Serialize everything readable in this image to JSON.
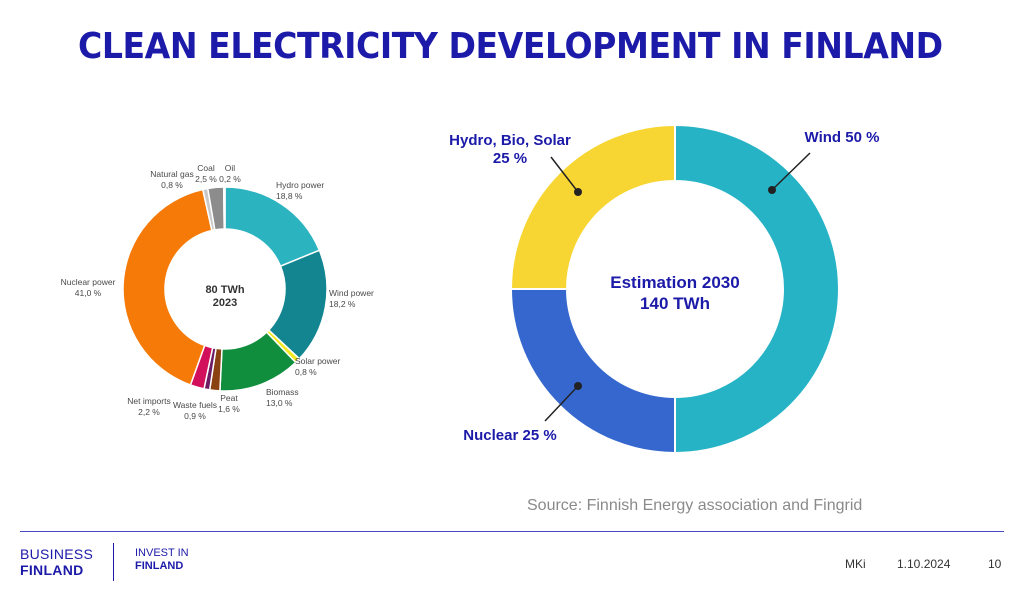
{
  "title": "CLEAN ELECTRICITY DEVELOPMENT IN FINLAND",
  "chart_data": [
    {
      "type": "pie",
      "variant": "donut",
      "center_label": [
        "80 TWh",
        "2023"
      ],
      "slices": [
        {
          "label": "Hydro power",
          "value_text": "18,8 %",
          "value": 18.8,
          "color": "#2bb3c0"
        },
        {
          "label": "Wind power",
          "value_text": "18,2 %",
          "value": 18.2,
          "color": "#138591"
        },
        {
          "label": "Solar power",
          "value_text": "0,8 %",
          "value": 0.8,
          "color": "#f2ea1e"
        },
        {
          "label": "Biomass",
          "value_text": "13,0 %",
          "value": 13.0,
          "color": "#108e3e"
        },
        {
          "label": "Peat",
          "value_text": "1,6 %",
          "value": 1.6,
          "color": "#8a4212"
        },
        {
          "label": "Waste fuels",
          "value_text": "0,9 %",
          "value": 0.9,
          "color": "#6d1b63"
        },
        {
          "label": "Net imports",
          "value_text": "2,2 %",
          "value": 2.2,
          "color": "#d10f5a"
        },
        {
          "label": "Nuclear power",
          "value_text": "41,0 %",
          "value": 41.0,
          "color": "#f57a07"
        },
        {
          "label": "Natural gas",
          "value_text": "0,8 %",
          "value": 0.8,
          "color": "#c9c9c9"
        },
        {
          "label": "Coal",
          "value_text": "2,5 %",
          "value": 2.5,
          "color": "#8c8c8c"
        },
        {
          "label": "Oil",
          "value_text": "0,2 %",
          "value": 0.2,
          "color": "#5a5a5a"
        }
      ]
    },
    {
      "type": "pie",
      "variant": "donut",
      "center_label": [
        "Estimation 2030",
        "140 TWh"
      ],
      "slices": [
        {
          "label": "Wind  50 %",
          "value": 50,
          "color": "#27b3c6"
        },
        {
          "label": "Nuclear 25 %",
          "value": 25,
          "color": "#3567cf"
        },
        {
          "label": "Hydro, Bio, Solar\n25 %",
          "value": 25,
          "color": "#f7d633"
        }
      ]
    }
  ],
  "source": "Source: Finnish Energy association and Fingrid",
  "footer": {
    "brand_line1": "BUSINESS",
    "brand_line2": "FINLAND",
    "invest_line1": "INVEST IN",
    "invest_line2": "FINLAND",
    "author": "MKi",
    "date": "1.10.2024",
    "page": "10"
  }
}
